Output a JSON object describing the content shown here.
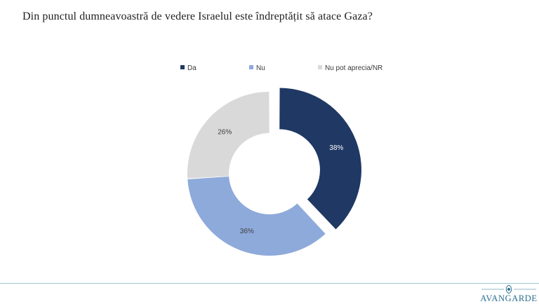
{
  "title": "Din punctul dumneavoastră de vedere Israelul este îndreptățit să atace Gaza?",
  "chart_data": {
    "type": "pie",
    "variant": "donut",
    "categories": [
      "Da",
      "Nu",
      "Nu pot aprecia/NR"
    ],
    "values": [
      38,
      36,
      26
    ],
    "labels": [
      "38%",
      "36%",
      "26%"
    ],
    "colors": [
      "#1f3864",
      "#8eaadb",
      "#d9d9d9"
    ],
    "exploded": [
      "Da"
    ],
    "legend_position": "top"
  },
  "logo": {
    "text": "AVANGARDE"
  }
}
